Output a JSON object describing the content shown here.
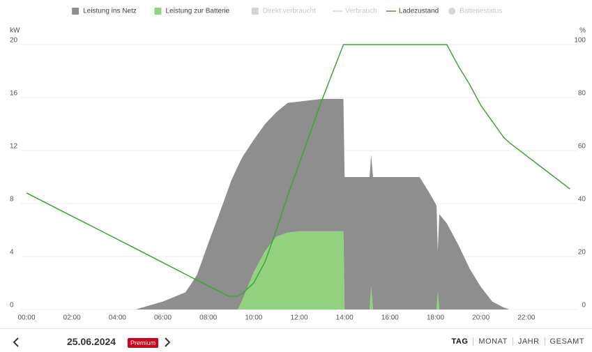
{
  "chart_data": {
    "type": "area",
    "y_unit": "kW",
    "y2_unit": "%",
    "x": [
      0,
      4.8,
      6,
      7,
      7.5,
      8,
      8.5,
      8.9,
      9,
      9.3,
      9.5,
      10,
      10.5,
      11,
      11.5,
      12,
      12.5,
      13,
      13.95,
      14,
      15,
      15.1,
      15.17,
      15.25,
      17.3,
      17.7,
      18,
      18.05,
      18.1,
      18.17,
      18.5,
      19,
      19.5,
      20,
      20.5,
      21,
      21.25,
      23.92
    ],
    "xlim": [
      0,
      24
    ],
    "xticks": [
      {
        "value": 0,
        "label": "00:00"
      },
      {
        "value": 2,
        "label": "02:00"
      },
      {
        "value": 4,
        "label": "04:00"
      },
      {
        "value": 6,
        "label": "06:00"
      },
      {
        "value": 8,
        "label": "08:00"
      },
      {
        "value": 10,
        "label": "10:00"
      },
      {
        "value": 12,
        "label": "12:00"
      },
      {
        "value": 14,
        "label": "14:00"
      },
      {
        "value": 16,
        "label": "16:00"
      },
      {
        "value": 18,
        "label": "18:00"
      },
      {
        "value": 20,
        "label": "20:00"
      },
      {
        "value": 22,
        "label": "22:00"
      }
    ],
    "ylim": [
      0,
      20
    ],
    "yticks": [
      0,
      4,
      8,
      12,
      16,
      20
    ],
    "y2lim": [
      0,
      100
    ],
    "y2ticks": [
      0,
      20,
      40,
      60,
      80,
      100
    ],
    "grid": true,
    "stacked": true,
    "series": [
      {
        "name": "Leistung ins Netz",
        "color": "#8e8e8e",
        "marker": "square",
        "visible": true,
        "values": [
          0,
          0,
          0.6,
          1.3,
          2.6,
          5.0,
          7.3,
          9.2,
          9.7,
          10.8,
          10.8,
          10.0,
          9.6,
          9.4,
          9.8,
          9.8,
          9.9,
          10.0,
          10.0,
          10.0,
          10,
          10,
          10.0,
          10,
          10,
          8.9,
          8.0,
          7.8,
          3.1,
          7.2,
          6.5,
          4.9,
          3.1,
          1.7,
          0.6,
          0.15,
          0,
          0
        ]
      },
      {
        "name": "Leistung zur Batterie",
        "color": "#92d27f",
        "marker": "square",
        "visible": true,
        "values": [
          0,
          0,
          0,
          0,
          0,
          0,
          0,
          0,
          0,
          0,
          0.7,
          2.8,
          4.4,
          5.5,
          5.8,
          5.9,
          5.9,
          5.9,
          5.9,
          0,
          0,
          0,
          1.7,
          0,
          0,
          0,
          0,
          0,
          1.3,
          0,
          0,
          0,
          0,
          0,
          0,
          0,
          0,
          0
        ]
      },
      {
        "name": "Direkt verbraucht",
        "color": "#d6d6d6",
        "marker": "square",
        "visible": false
      },
      {
        "name": "Verbrauch",
        "color": "#d6d6d6",
        "marker": "line",
        "visible": false
      },
      {
        "name": "Ladezustand",
        "color": "#3fa535",
        "marker": "line",
        "visible": true,
        "type": "line",
        "axis": "y2",
        "values": [
          44,
          23,
          17.7,
          13.3,
          11.1,
          8.9,
          6.8,
          5,
          5,
          5,
          6,
          10,
          18,
          30,
          43,
          55,
          67,
          79,
          100,
          100,
          100,
          100,
          100,
          100,
          100,
          100,
          100,
          100,
          100,
          100,
          100,
          92,
          85,
          77,
          71,
          65,
          63,
          45.5
        ]
      },
      {
        "name": "Batteriestatus",
        "color": "#d6d6d6",
        "marker": "circle",
        "visible": false
      }
    ]
  },
  "navigation": {
    "date": "25.06.2024",
    "badge": "Premium",
    "tabs": [
      "TAG",
      "MONAT",
      "JAHR",
      "GESAMT"
    ]
  }
}
